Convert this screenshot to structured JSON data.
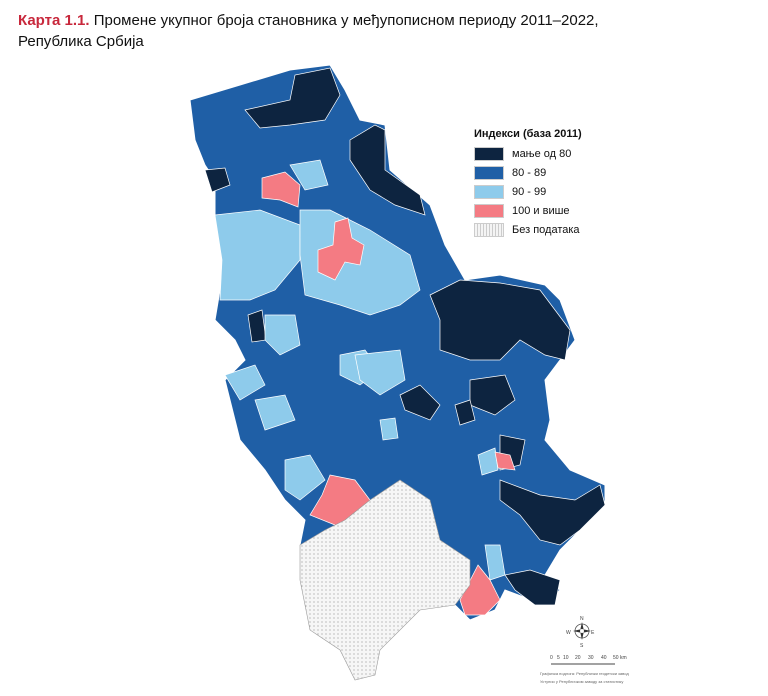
{
  "title": {
    "label": "Карта 1.1.",
    "text": "Промене укупног броја становника у међупописном периоду 2011–2022,",
    "line2": "Република Србија"
  },
  "legend": {
    "title": "Индекси (база 2011)",
    "items": [
      {
        "label": "мање од 80",
        "color": "#0d2440"
      },
      {
        "label": "80 - 89",
        "color": "#1f5fa6"
      },
      {
        "label": "90 - 99",
        "color": "#8ecbeb"
      },
      {
        "label": "100 и више",
        "color": "#f47b83"
      },
      {
        "label": "Без података",
        "color": "#f4f4f4"
      }
    ]
  },
  "compass": {
    "n": "N",
    "s": "S",
    "e": "E",
    "w": "W"
  },
  "scale": {
    "ticks": [
      "0",
      "5",
      "10",
      "20",
      "30",
      "40",
      "50 km"
    ]
  },
  "credits": {
    "line1": "Графичка подлога: Републички геодетски завод",
    "line2": "Уступио у Републичком заводу за статистику"
  }
}
